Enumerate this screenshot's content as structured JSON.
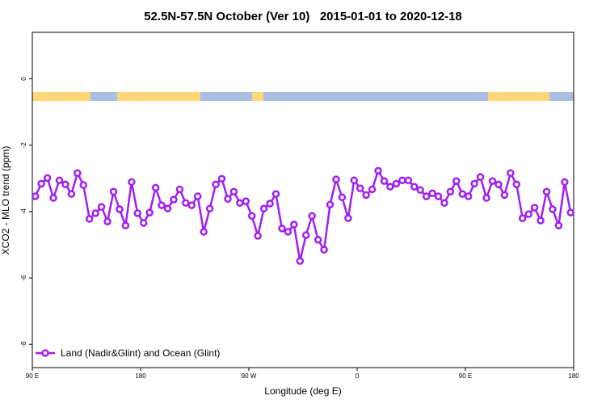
{
  "chart_data": {
    "type": "line",
    "title": "52.5N-57.5N October (Ver 10)   2015-01-01 to 2020-12-18",
    "x_label": "Longitude (deg E)",
    "y_label": "XCO2 - MLO trend (ppm)",
    "x": [
      92.5,
      97.5,
      102.5,
      107.5,
      112.5,
      117.5,
      122.5,
      127.5,
      132.5,
      137.5,
      142.5,
      147.5,
      152.5,
      157.5,
      162.5,
      167.5,
      172.5,
      177.5,
      182.5,
      187.5,
      192.5,
      197.5,
      202.5,
      207.5,
      212.5,
      217.5,
      222.5,
      227.5,
      232.5,
      237.5,
      242.5,
      247.5,
      252.5,
      257.5,
      262.5,
      267.5,
      272.5,
      277.5,
      282.5,
      287.5,
      292.5,
      297.5,
      302.5,
      307.5,
      312.5,
      317.5,
      322.5,
      327.5,
      332.5,
      337.5,
      342.5,
      347.5,
      352.5,
      357.5,
      362.5,
      367.5,
      372.5,
      377.5,
      382.5,
      387.5,
      392.5,
      397.5,
      402.5,
      407.5,
      412.5,
      417.5,
      422.5,
      427.5,
      432.5,
      437.5,
      442.5,
      447.5,
      452.5,
      457.5,
      462.5,
      467.5,
      472.5,
      477.5,
      482.5,
      487.5,
      492.5,
      497.5,
      502.5,
      507.5,
      512.5,
      517.5,
      522.5,
      527.5,
      532.5,
      537.5
    ],
    "series": [
      {
        "name": "Land (Nadir&Glint) and Ocean (Glint)",
        "color": "#a020f0",
        "values": [
          -3.54,
          -3.16,
          -2.99,
          -3.59,
          -3.06,
          -3.18,
          -3.47,
          -2.84,
          -3.2,
          -4.22,
          -4.05,
          -3.86,
          -4.3,
          -3.4,
          -3.93,
          -4.42,
          -3.11,
          -4.05,
          -4.34,
          -4.03,
          -3.28,
          -3.81,
          -3.91,
          -3.64,
          -3.33,
          -3.74,
          -3.81,
          -3.54,
          -4.61,
          -3.91,
          -3.18,
          -3.01,
          -3.62,
          -3.4,
          -3.74,
          -3.69,
          -4.13,
          -4.73,
          -3.91,
          -3.76,
          -3.47,
          -4.51,
          -4.61,
          -4.39,
          -5.49,
          -4.71,
          -4.13,
          -4.85,
          -5.15,
          -3.79,
          -3.03,
          -3.57,
          -4.2,
          -3.06,
          -3.3,
          -3.5,
          -3.33,
          -2.77,
          -3.08,
          -3.25,
          -3.16,
          -3.06,
          -3.06,
          -3.25,
          -3.35,
          -3.54,
          -3.45,
          -3.54,
          -3.74,
          -3.4,
          -3.08,
          -3.47,
          -3.54,
          -3.16,
          -2.96,
          -3.59,
          -3.08,
          -3.18,
          -3.5,
          -2.84,
          -3.18,
          -4.2,
          -4.08,
          -3.88,
          -4.27,
          -3.4,
          -3.93,
          -4.42,
          -3.11,
          -4.03
        ]
      }
    ],
    "xlim": [
      90,
      540
    ],
    "xticks": [
      {
        "value": 90,
        "label": "90 E"
      },
      180,
      {
        "value": 270,
        "label": "90 W"
      },
      {
        "value": 360,
        "label": "0"
      },
      {
        "value": 450,
        "label": "90 E"
      },
      {
        "value": 540,
        "label": "180"
      }
    ],
    "ylim": [
      -8.7,
      1.4
    ],
    "yticks": [
      0,
      -2,
      -4,
      -6,
      -8
    ],
    "legend": "bottom-left"
  }
}
